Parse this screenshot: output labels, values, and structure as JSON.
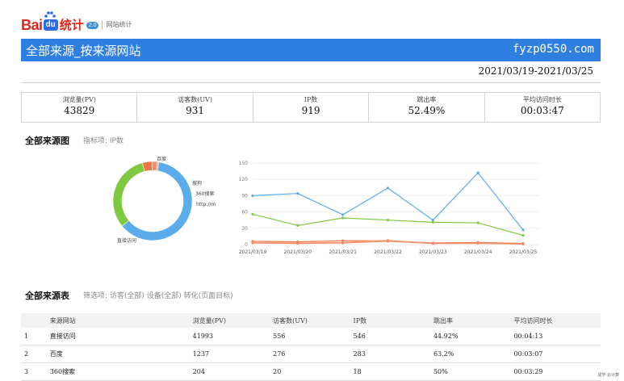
{
  "logo": {
    "bai": "Bai",
    "du": "du",
    "tongji": "统计",
    "badge": "2.0",
    "sub": "网站统计"
  },
  "header": {
    "title": "全部来源_按来源网站",
    "site": "fyzp0550.com",
    "date_range": "2021/03/19-2021/03/25"
  },
  "stats": [
    {
      "label": "浏览量(PV)",
      "value": "43829"
    },
    {
      "label": "访客数(UV)",
      "value": "931"
    },
    {
      "label": "IP数",
      "value": "919"
    },
    {
      "label": "跳出率",
      "value": "52.49%"
    },
    {
      "label": "平均访问时长",
      "value": "00:03:47"
    }
  ],
  "chart_section": {
    "title": "全部来源图",
    "meta": "指标项: IP数"
  },
  "colors": {
    "blue": "#5aacea",
    "green": "#7ec93f",
    "orange": "#f07545",
    "salmon": "#ef8b6a",
    "peach": "#f4a67c",
    "header_blue": "#2f7fe0"
  },
  "chart_data": [
    {
      "type": "pie",
      "labels": [
        "直接访问",
        "百度",
        "搜狗",
        "360搜索",
        "http://m"
      ],
      "values": [
        546,
        283,
        36,
        18,
        6
      ]
    },
    {
      "type": "line",
      "x": [
        "2021/03/19",
        "2021/03/20",
        "2021/03/21",
        "2021/03/22",
        "2021/03/23",
        "2021/03/24",
        "2021/03/25"
      ],
      "ylim": [
        0,
        150
      ],
      "yticks": [
        "0",
        "30",
        "60",
        "90",
        "120",
        "150"
      ],
      "series": [
        {
          "values": [
            90,
            94,
            55,
            104,
            45,
            132,
            27
          ],
          "color": "#5aacea"
        },
        {
          "values": [
            56,
            35,
            49,
            45,
            41,
            40,
            17
          ],
          "color": "#7ec93f"
        },
        {
          "values": [
            6,
            5,
            7,
            7,
            3,
            4,
            2
          ],
          "color": "#f07545"
        },
        {
          "values": [
            4,
            3,
            4,
            8,
            2,
            2,
            1
          ],
          "color": "#f4a67c"
        },
        {
          "values": [
            3,
            2,
            3,
            6,
            2,
            3,
            1
          ],
          "color": "#ef8b6a"
        }
      ]
    }
  ],
  "table_section": {
    "title": "全部来源表",
    "filters": "筛选项: 访客(全部) 设备(全部) 转化(页面目标)"
  },
  "table": {
    "columns": [
      "",
      "来源网站",
      "浏览量(PV)",
      "访客数(UV)",
      "IP数",
      "跳出率",
      "平均访问时长"
    ],
    "rows": [
      [
        "1",
        "直接访问",
        "41993",
        "556",
        "546",
        "44.92%",
        "00:04:13"
      ],
      [
        "2",
        "百度",
        "1237",
        "276",
        "283",
        "63.2%",
        "00:03:07"
      ],
      [
        "3",
        "360搜索",
        "204",
        "20",
        "18",
        "50%",
        "00:03:29"
      ]
    ]
  },
  "corner_note": "成学·云计算"
}
